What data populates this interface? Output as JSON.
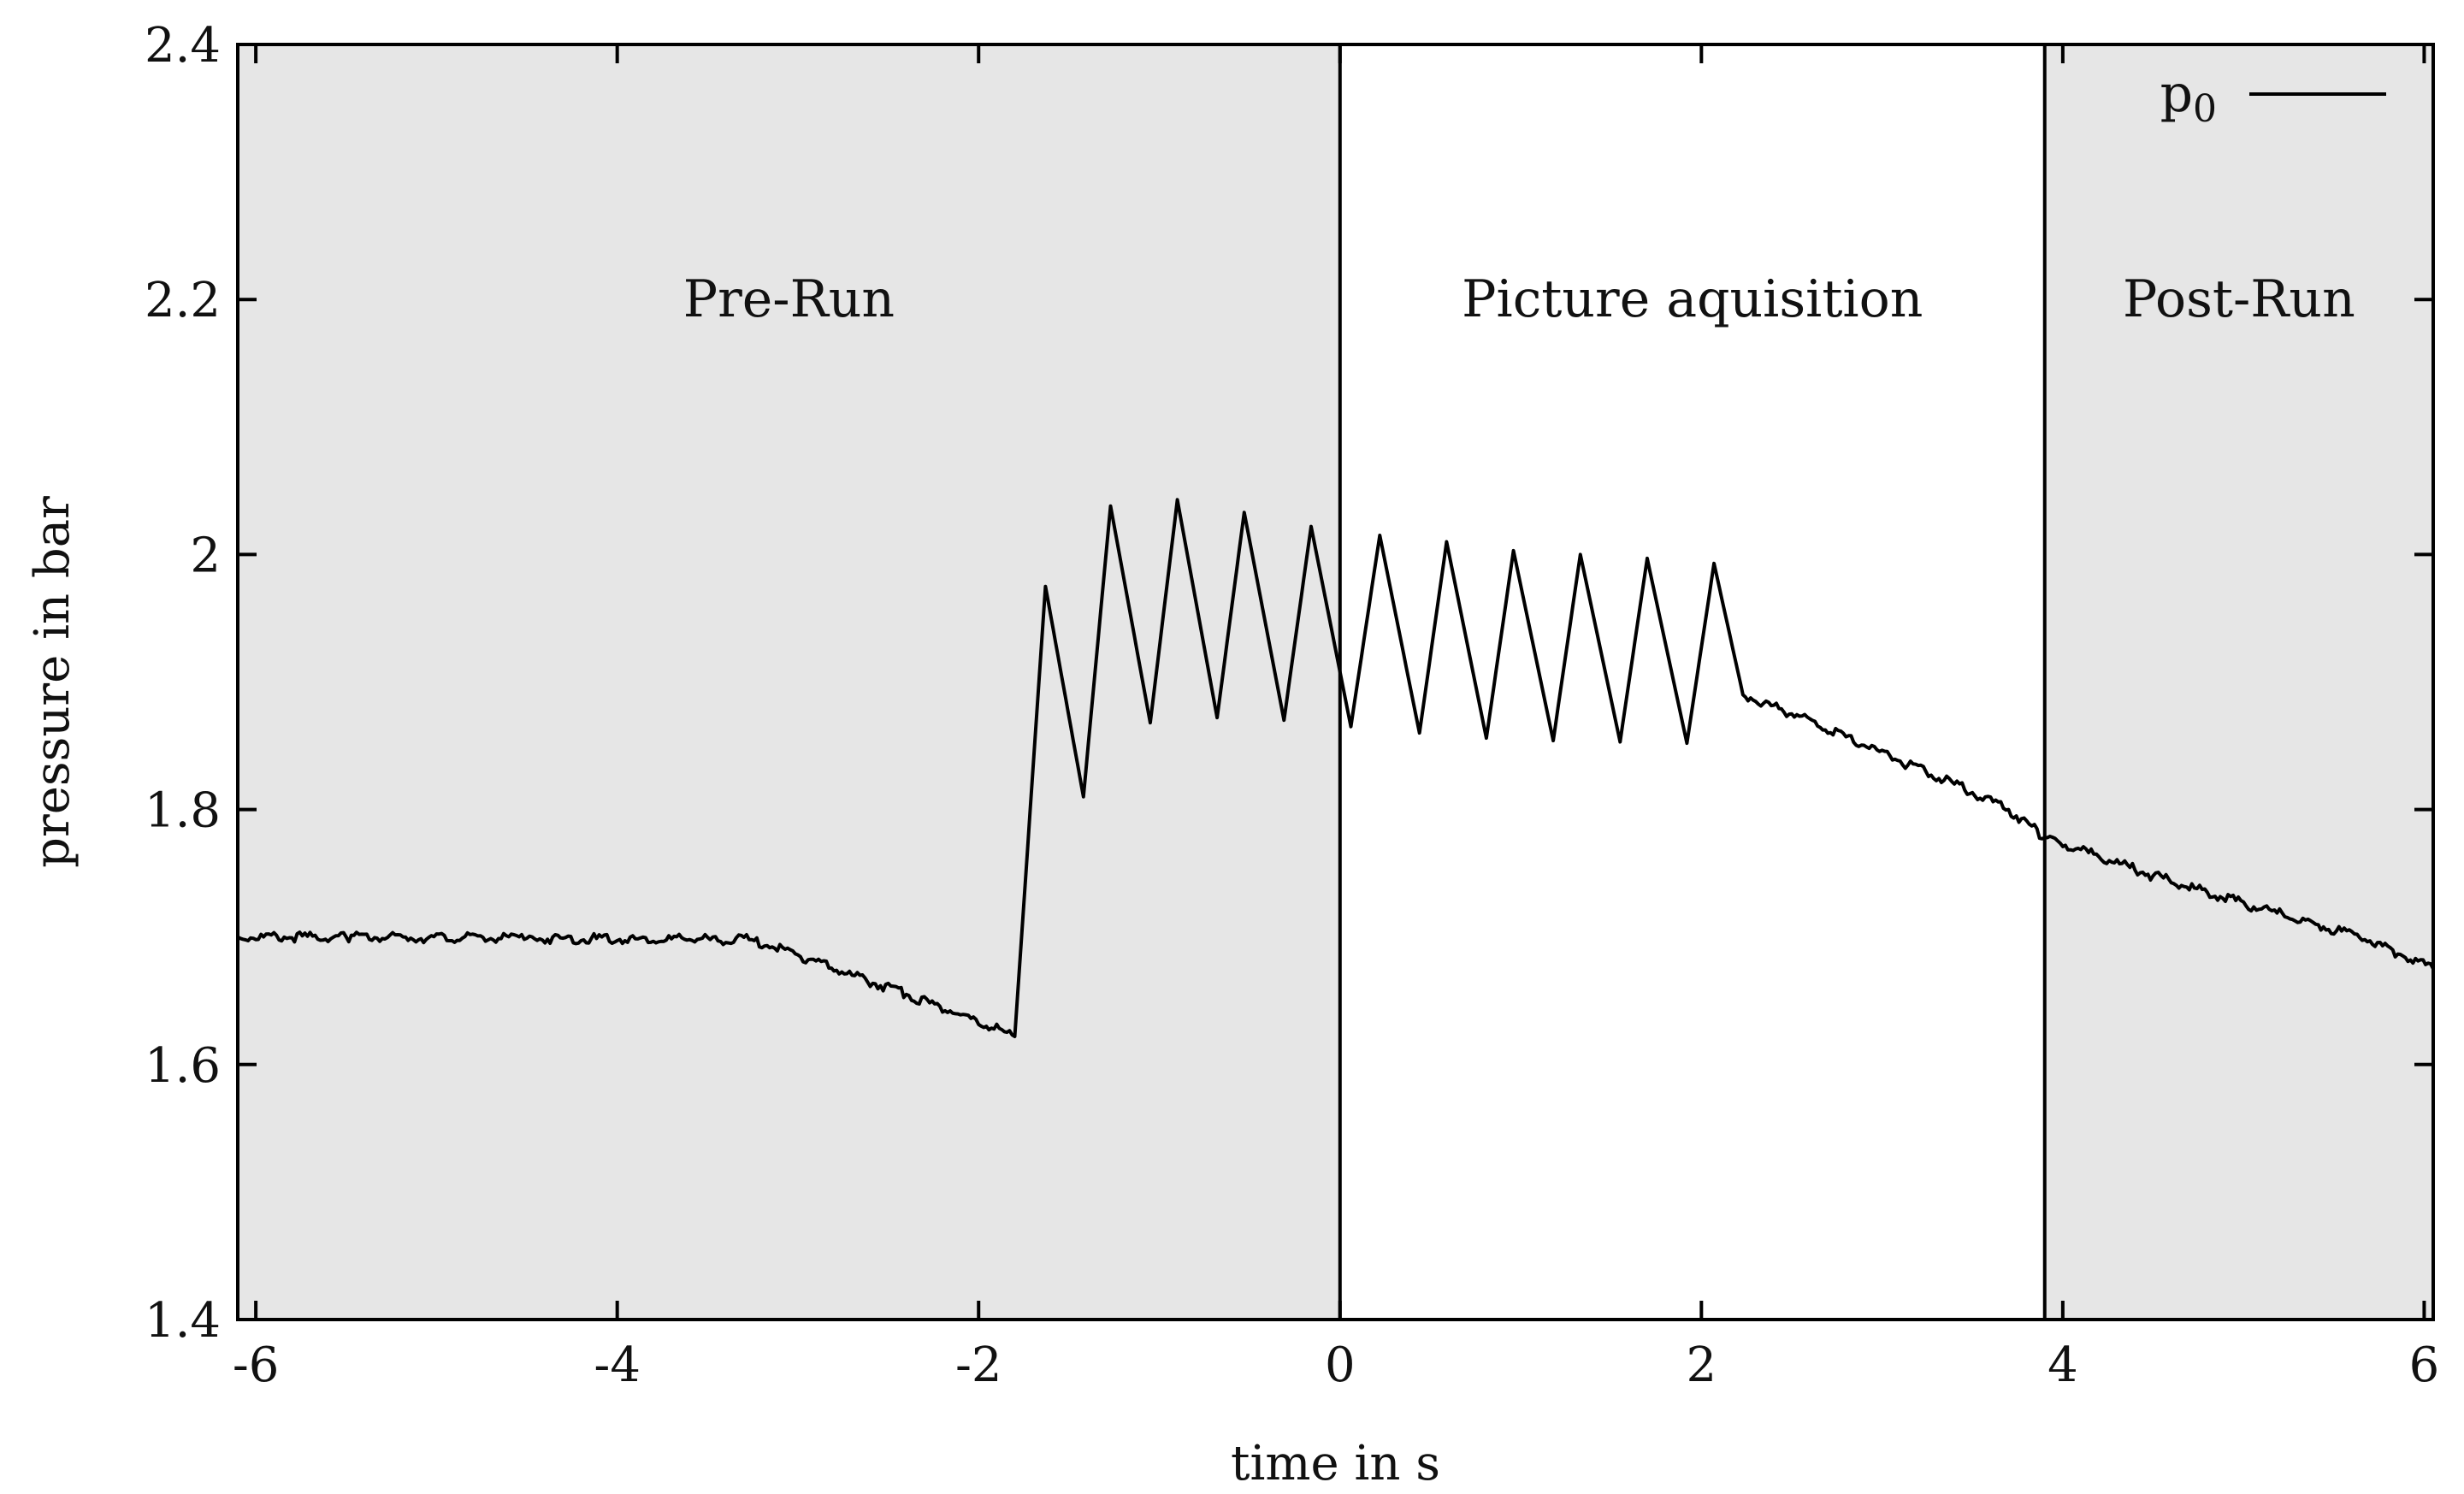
{
  "chart_data": {
    "type": "line",
    "title": "",
    "xlabel": "time in s",
    "ylabel": "pressure in bar",
    "xlim": [
      -6.1,
      6.05
    ],
    "ylim": [
      1.4,
      2.4
    ],
    "x_ticks": [
      -6,
      -4,
      -2,
      0,
      2,
      4,
      6
    ],
    "x_tick_labels": [
      "-6",
      "-4",
      "-2",
      "0",
      "2",
      "4",
      "6"
    ],
    "y_ticks": [
      1.4,
      1.6,
      1.8,
      2.0,
      2.2,
      2.4
    ],
    "y_tick_labels": [
      "1.4",
      "1.6",
      "1.8",
      "2",
      "2.2",
      "2.4"
    ],
    "grid": false,
    "legend_position": "top-right",
    "regions": [
      {
        "label": "Pre-Run",
        "x_start": -6.1,
        "x_end": 0.0,
        "shaded": true,
        "fill": "#e6e6e6"
      },
      {
        "label": "Picture aquisition",
        "x_start": 0.0,
        "x_end": 3.9,
        "shaded": false,
        "fill": "#ffffff"
      },
      {
        "label": "Post-Run",
        "x_start": 3.9,
        "x_end": 6.05,
        "shaded": true,
        "fill": "#e6e6e6"
      }
    ],
    "region_boundaries": [
      0.0,
      3.9
    ],
    "series": [
      {
        "name": "p0",
        "color": "#000000",
        "points": [
          [
            -6.1,
            1.7
          ],
          [
            -5.5,
            1.7
          ],
          [
            -4.5,
            1.699
          ],
          [
            -3.6,
            1.698
          ],
          [
            -3.27,
            1.698
          ],
          [
            -3.0,
            1.686
          ],
          [
            -2.7,
            1.67
          ],
          [
            -2.4,
            1.655
          ],
          [
            -2.1,
            1.639
          ],
          [
            -1.8,
            1.622
          ],
          [
            -1.63,
            1.975
          ],
          [
            -1.42,
            1.81
          ],
          [
            -1.27,
            2.038
          ],
          [
            -1.05,
            1.868
          ],
          [
            -0.9,
            2.043
          ],
          [
            -0.68,
            1.872
          ],
          [
            -0.53,
            2.033
          ],
          [
            -0.31,
            1.87
          ],
          [
            -0.16,
            2.022
          ],
          [
            0.06,
            1.865
          ],
          [
            0.22,
            2.015
          ],
          [
            0.44,
            1.86
          ],
          [
            0.59,
            2.01
          ],
          [
            0.81,
            1.856
          ],
          [
            0.96,
            2.003
          ],
          [
            1.18,
            1.854
          ],
          [
            1.33,
            2.0
          ],
          [
            1.55,
            1.853
          ],
          [
            1.7,
            1.997
          ],
          [
            1.92,
            1.852
          ],
          [
            2.07,
            1.993
          ],
          [
            2.23,
            1.89
          ],
          [
            2.5,
            1.875
          ],
          [
            2.8,
            1.857
          ],
          [
            3.1,
            1.838
          ],
          [
            3.4,
            1.82
          ],
          [
            3.7,
            1.8
          ],
          [
            3.9,
            1.778
          ],
          [
            4.2,
            1.763
          ],
          [
            4.5,
            1.748
          ],
          [
            4.8,
            1.735
          ],
          [
            5.1,
            1.722
          ],
          [
            5.4,
            1.71
          ],
          [
            5.7,
            1.697
          ],
          [
            6.05,
            1.675
          ]
        ]
      }
    ]
  }
}
